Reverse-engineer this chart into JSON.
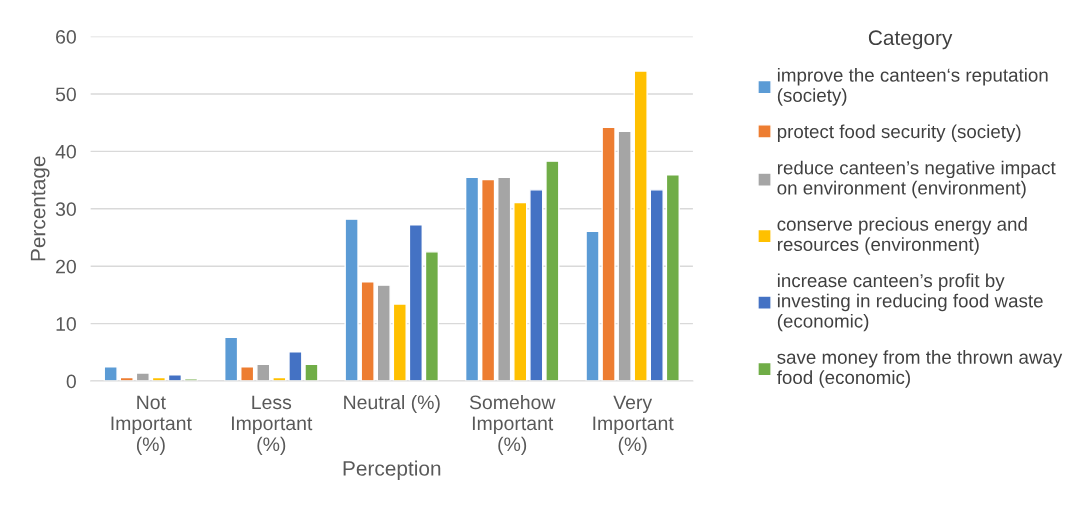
{
  "chart_data": {
    "type": "bar",
    "xlabel": "Perception",
    "ylabel": "Percentage",
    "legend_title": "Category",
    "categories": [
      "Not Important (%)",
      "Less Important (%)",
      "Neutral (%)",
      "Somehow Important (%)",
      "Very Important (%)"
    ],
    "series": [
      {
        "name": "improve the canteen‘s reputation (society)",
        "color": "#5b9bd5",
        "values": [
          2.5,
          7.6,
          28.2,
          35.5,
          26.1
        ]
      },
      {
        "name": "protect food security (society)",
        "color": "#ed7d31",
        "values": [
          0.6,
          2.5,
          17.3,
          35.1,
          44.2
        ]
      },
      {
        "name": "reduce canteen’s negative impact on environment (environment)",
        "color": "#a5a5a5",
        "values": [
          1.4,
          2.9,
          16.7,
          35.5,
          43.5
        ]
      },
      {
        "name": "conserve precious energy and resources (environment)",
        "color": "#ffc000",
        "values": [
          0.6,
          0.6,
          13.4,
          31.1,
          54.0
        ]
      },
      {
        "name": "increase canteen’s profit by investing in reducing food waste (economic)",
        "color": "#4472c4",
        "values": [
          1.1,
          5.1,
          27.2,
          33.3,
          33.3
        ]
      },
      {
        "name": "save money from the thrown away food (economic)",
        "color": "#70ad47",
        "values": [
          0.4,
          2.9,
          22.5,
          38.3,
          35.9
        ]
      }
    ],
    "ylim": [
      0,
      60
    ],
    "yticks": [
      0,
      10,
      20,
      30,
      40,
      50,
      60
    ],
    "grid": "y",
    "legend": "right"
  }
}
